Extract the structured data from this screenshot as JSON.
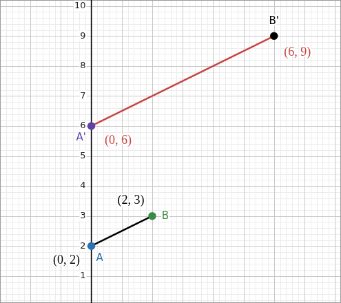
{
  "chart_data": {
    "type": "line",
    "xlim": [
      -3,
      8.2
    ],
    "ylim": [
      0.1,
      10.2
    ],
    "xticks": [
      -3,
      -2,
      -1,
      0,
      1,
      2,
      3,
      4,
      5,
      6,
      7,
      8
    ],
    "yticks": [
      1,
      2,
      3,
      4,
      5,
      6,
      7,
      8,
      9,
      10
    ],
    "grid": true,
    "tick_labels": "y",
    "data_labels": true,
    "marker": "circle",
    "series": [
      {
        "color": "#000000",
        "x": [
          0,
          2
        ],
        "values": [
          2,
          3
        ],
        "point_labels": [
          "A",
          "B"
        ],
        "colors": [
          "#2d70b3",
          "#388c46"
        ],
        "value_labels": [
          "(0, 2)",
          "(2, 3)"
        ]
      },
      {
        "color": "#c74440",
        "x": [
          0,
          6
        ],
        "values": [
          6,
          9
        ],
        "point_labels": [
          "A'",
          "B'"
        ],
        "colors": [
          "#6042a6",
          "#000000"
        ],
        "value_labels": [
          "(0, 6)",
          "(6, 9)"
        ]
      }
    ]
  }
}
